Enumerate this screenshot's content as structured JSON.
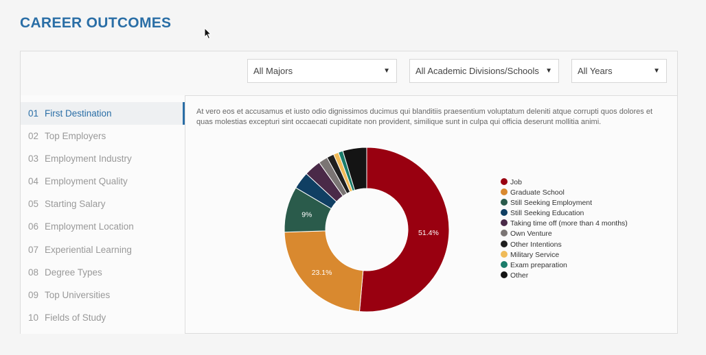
{
  "page_title": "CAREER OUTCOMES",
  "filters": {
    "majors": "All Majors",
    "divisions": "All Academic Divisions/Schools",
    "years": "All Years"
  },
  "sidebar": {
    "items": [
      {
        "num": "01",
        "label": "First Destination"
      },
      {
        "num": "02",
        "label": "Top Employers"
      },
      {
        "num": "03",
        "label": "Employment Industry"
      },
      {
        "num": "04",
        "label": "Employment Quality"
      },
      {
        "num": "05",
        "label": "Starting Salary"
      },
      {
        "num": "06",
        "label": "Employment Location"
      },
      {
        "num": "07",
        "label": "Experiential Learning"
      },
      {
        "num": "08",
        "label": "Degree Types"
      },
      {
        "num": "09",
        "label": "Top Universities"
      },
      {
        "num": "10",
        "label": "Fields of Study"
      }
    ],
    "active_index": 0
  },
  "description": "At vero eos et accusamus et iusto odio dignissimos ducimus qui blanditiis praesentium voluptatum deleniti atque corrupti quos dolores et quas molestias excepturi sint occaecati cupiditate non provident, similique sunt in culpa qui officia deserunt mollitia animi.",
  "chart_data": {
    "type": "pie",
    "donut": true,
    "legend_position": "right",
    "series": [
      {
        "name": "Job",
        "value": 51.4,
        "color": "#990010",
        "label": "51.4%"
      },
      {
        "name": "Graduate School",
        "value": 23.1,
        "color": "#d9892f",
        "label": "23.1%"
      },
      {
        "name": "Still Seeking Employment",
        "value": 9.0,
        "color": "#2a5b4b",
        "label": "9%"
      },
      {
        "name": "Still Seeking Education",
        "value": 3.4,
        "color": "#103f63",
        "label": ""
      },
      {
        "name": "Taking time off (more than 4 months)",
        "value": 3.3,
        "color": "#4a2a48",
        "label": ""
      },
      {
        "name": "Own Venture",
        "value": 1.8,
        "color": "#7b7574",
        "label": ""
      },
      {
        "name": "Other Intentions",
        "value": 1.4,
        "color": "#1f1f1f",
        "label": ""
      },
      {
        "name": "Military Service",
        "value": 1.0,
        "color": "#f0bb58",
        "label": ""
      },
      {
        "name": "Exam preparation",
        "value": 0.9,
        "color": "#1a7c6a",
        "label": ""
      },
      {
        "name": "Other",
        "value": 4.7,
        "color": "#141414",
        "label": ""
      }
    ]
  }
}
